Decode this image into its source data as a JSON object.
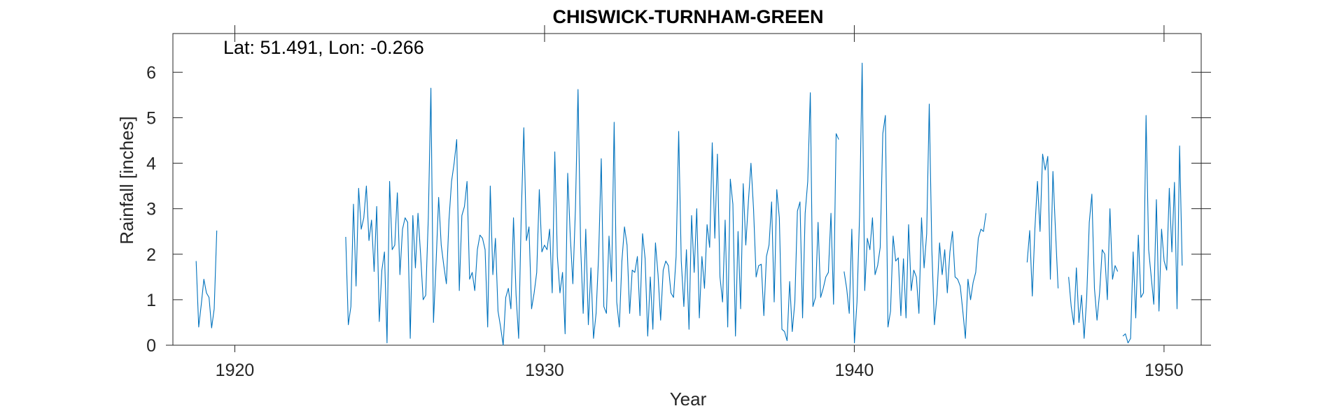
{
  "chart_data": {
    "type": "line",
    "title": "CHISWICK-TURNHAM-GREEN",
    "annotation": "Lat: 51.491, Lon: -0.266",
    "xlabel": "Year",
    "ylabel": "Rainfall [inches]",
    "xlim": [
      1918,
      1951.2
    ],
    "ylim": [
      0,
      6.85
    ],
    "xticks": [
      1920,
      1930,
      1940,
      1950
    ],
    "xtick_labels": [
      "1920",
      "1930",
      "1940",
      "1950"
    ],
    "yticks": [
      0,
      1,
      2,
      3,
      4,
      5,
      6
    ],
    "ytick_labels": [
      "0",
      "1",
      "2",
      "3",
      "4",
      "5",
      "6"
    ],
    "grid": false,
    "series": [
      {
        "color": "#0072BD",
        "segments": [
          {
            "x0": 1918.75,
            "values": [
              1.85,
              0.4,
              0.9,
              1.45,
              1.15,
              1.05,
              0.38,
              0.8,
              2.52
            ]
          },
          {
            "x0": 1923.58,
            "values": [
              2.38,
              0.45,
              0.85,
              3.1,
              1.3,
              3.45,
              2.55,
              2.8,
              3.5,
              2.3,
              2.75,
              1.62,
              3.05,
              0.52,
              1.65,
              2.05,
              0.05,
              3.6,
              2.1,
              2.2,
              3.35,
              1.55,
              2.55,
              2.8,
              2.7,
              0.15,
              2.85,
              1.7,
              2.9,
              2.0,
              1.0,
              1.1,
              2.8,
              5.65,
              0.5,
              1.8,
              3.25,
              2.2,
              1.75,
              1.35,
              2.75,
              3.6,
              4.0,
              4.52,
              1.2,
              2.85,
              3.05,
              3.6,
              1.45,
              1.6,
              1.2,
              2.1,
              2.42,
              2.35,
              2.1,
              0.4,
              3.5,
              1.55,
              2.35,
              0.75,
              0.4,
              0.0,
              1.05,
              1.25,
              0.8,
              2.8,
              1.1,
              0.15,
              2.85,
              4.78,
              2.3,
              2.6,
              0.8,
              1.15,
              1.6,
              3.42,
              2.05,
              2.2,
              2.1,
              2.55,
              1.15,
              4.25,
              1.95,
              1.15,
              1.6,
              0.25,
              3.78,
              2.4,
              1.35,
              3.0,
              5.62,
              2.2,
              0.7,
              2.55,
              0.45,
              1.7,
              0.15,
              0.7,
              2.0,
              4.1,
              0.85,
              0.7,
              2.4,
              1.4,
              4.9,
              0.95,
              0.4,
              1.85,
              2.6,
              2.2,
              0.7,
              1.65,
              1.6,
              1.95,
              0.65,
              2.45,
              1.9,
              0.2,
              1.5,
              0.35,
              2.25,
              1.55,
              0.55,
              1.65,
              1.85,
              1.75,
              1.15,
              1.05,
              1.95,
              4.7,
              1.85,
              0.85,
              2.1,
              0.35,
              2.85,
              1.6,
              3.0,
              0.6,
              1.95,
              1.25,
              2.65,
              2.15,
              4.45,
              2.35,
              4.2,
              1.5,
              0.95,
              2.75,
              0.4,
              3.65,
              3.1,
              0.2,
              2.5,
              0.8,
              3.55,
              2.2,
              3.15,
              4.0,
              3.0,
              1.5,
              1.75,
              1.78,
              0.65,
              1.95,
              2.2,
              3.15,
              0.95,
              3.42,
              2.8,
              0.35,
              0.3,
              0.1,
              1.4,
              0.3,
              0.95,
              2.95,
              3.15,
              0.6,
              2.9,
              3.6,
              5.55,
              0.85,
              1.05,
              2.7,
              1.05,
              1.25,
              1.5,
              1.6,
              2.9,
              0.9,
              4.65,
              4.52
            ]
          },
          {
            "x0": 1939.67,
            "values": [
              1.62,
              1.25,
              0.7,
              2.55,
              0.05,
              0.95,
              2.85,
              6.2,
              1.2,
              2.35,
              2.1,
              2.8,
              1.55,
              1.75,
              2.15,
              4.65,
              5.05,
              0.4,
              0.75,
              2.4,
              1.85,
              1.92,
              0.65,
              1.9,
              0.6,
              2.65,
              1.2,
              1.65,
              1.5,
              0.7,
              2.8,
              1.7,
              2.45,
              5.3,
              2.1,
              0.45,
              1.1,
              2.25,
              1.55,
              2.1,
              1.15,
              2.05,
              2.5,
              1.5,
              1.45,
              1.3,
              0.75,
              0.15,
              1.45,
              1.0,
              1.38,
              1.6,
              2.35,
              2.55,
              2.5,
              2.9
            ]
          },
          {
            "x0": 1945.58,
            "values": [
              1.82,
              2.52,
              1.08,
              2.55,
              3.6,
              2.5,
              4.2,
              3.85,
              4.15,
              1.45,
              3.82,
              2.5,
              1.25
            ]
          },
          {
            "x0": 1946.92,
            "values": [
              1.5,
              0.85,
              0.45,
              1.7,
              0.5,
              1.1,
              0.15,
              1.05,
              2.7,
              3.32,
              1.25,
              0.55,
              1.15,
              2.1,
              2.0,
              1.0,
              3.0,
              1.45,
              1.75,
              1.62
            ]
          },
          {
            "x0": 1948.67,
            "values": [
              0.2,
              0.25,
              0.05,
              0.15,
              2.05,
              0.6,
              2.42,
              1.05,
              1.15,
              5.05,
              2.1,
              1.5,
              0.9,
              3.2,
              0.75,
              2.55,
              1.85,
              1.65,
              3.45,
              2.05,
              3.58,
              0.8,
              4.38,
              1.75
            ]
          }
        ]
      }
    ]
  }
}
